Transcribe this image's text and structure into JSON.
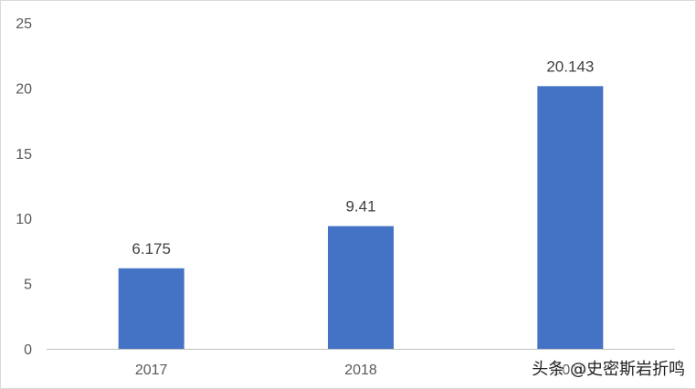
{
  "chart_data": {
    "type": "bar",
    "categories": [
      "2017",
      "2018",
      "2019"
    ],
    "values": [
      6.175,
      9.41,
      20.143
    ],
    "data_labels": [
      "6.175",
      "9.41",
      "20.143"
    ],
    "title": "",
    "xlabel": "",
    "ylabel": "",
    "ylim": [
      0,
      25
    ],
    "y_ticks": [
      0,
      5,
      10,
      15,
      20,
      25
    ],
    "grid": false,
    "legend": "none",
    "bar_color": "#4472c4",
    "axis_color": "#bfbfbf"
  },
  "watermark": "头条 @史密斯岩折鸣"
}
